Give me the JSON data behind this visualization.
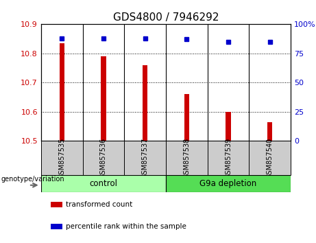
{
  "title": "GDS4800 / 7946292",
  "samples": [
    "GSM857535",
    "GSM857536",
    "GSM857537",
    "GSM857538",
    "GSM857539",
    "GSM857540"
  ],
  "bar_values": [
    10.835,
    10.79,
    10.76,
    10.66,
    10.6,
    10.565
  ],
  "percentile_values": [
    88,
    88,
    88,
    87,
    85,
    85
  ],
  "ylim_left": [
    10.5,
    10.9
  ],
  "ylim_right": [
    0,
    100
  ],
  "yticks_left": [
    10.5,
    10.6,
    10.7,
    10.8,
    10.9
  ],
  "yticks_right": [
    0,
    25,
    50,
    75,
    100
  ],
  "bar_color": "#cc0000",
  "dot_color": "#0000cc",
  "group_labels": [
    "control",
    "G9a depletion"
  ],
  "group_colors": [
    "#aaffaa",
    "#55dd55"
  ],
  "legend_items": [
    "transformed count",
    "percentile rank within the sample"
  ],
  "legend_colors": [
    "#cc0000",
    "#0000cc"
  ],
  "left_tick_color": "#cc0000",
  "right_tick_color": "#0000cc",
  "genotype_label": "genotype/variation",
  "tick_box_color": "#cccccc"
}
